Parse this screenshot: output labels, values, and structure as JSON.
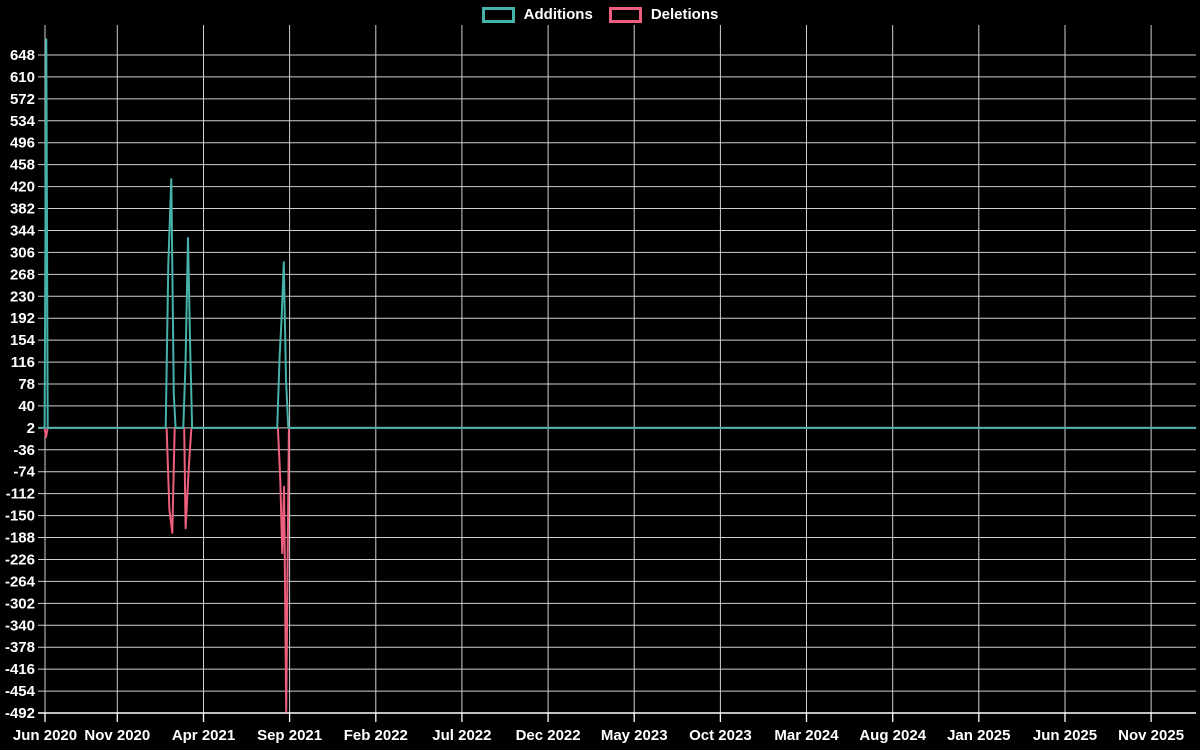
{
  "page": {
    "background": "#000000"
  },
  "legend": {
    "items": [
      {
        "label": "Additions",
        "color": "#45b3aa"
      },
      {
        "label": "Deletions",
        "color": "#ee5f7d"
      }
    ]
  },
  "chart_data": {
    "type": "line",
    "title": "",
    "xlabel": "",
    "ylabel": "",
    "legend_position": "top-center",
    "grid": true,
    "grid_color": "#cfcfcf",
    "axis_color": "#ffffff",
    "text_color": "#ffffff",
    "x_axis": {
      "x_unit": "months_after_first_tick",
      "tick_months": [
        0,
        5,
        10,
        15,
        20,
        25,
        30,
        35,
        40,
        45,
        50,
        55,
        60,
        65
      ],
      "tick_labels": [
        "Jun 2020",
        "Nov 2020",
        "Apr 2021",
        "Sep 2021",
        "Feb 2022",
        "Jul 2022",
        "Dec 2022",
        "May 2023",
        "Oct 2023",
        "Mar 2024",
        "Aug 2024",
        "Jan 2025",
        "Jun 2025",
        "Nov 2025"
      ]
    },
    "y_axis": {
      "tick_step": -38,
      "tick_values": [
        648,
        610,
        572,
        534,
        496,
        458,
        420,
        382,
        344,
        306,
        268,
        230,
        192,
        154,
        116,
        78,
        40,
        2,
        -36,
        -74,
        -112,
        -150,
        -188,
        -226,
        -264,
        -302,
        -340,
        -378,
        -416,
        -454,
        -492
      ],
      "ylim": [
        -492,
        676
      ],
      "baseline_value": 2
    },
    "series": [
      {
        "name": "Additions",
        "color": "#45b3aa",
        "points": [
          [
            -0.45,
            2
          ],
          [
            -0.08,
            2
          ],
          [
            0.02,
            675
          ],
          [
            0.1,
            2
          ],
          [
            6.95,
            2
          ],
          [
            7.1,
            285
          ],
          [
            7.27,
            433
          ],
          [
            7.42,
            60
          ],
          [
            7.52,
            2
          ],
          [
            7.97,
            2
          ],
          [
            8.1,
            120
          ],
          [
            8.24,
            331
          ],
          [
            8.37,
            140
          ],
          [
            8.48,
            2
          ],
          [
            13.42,
            2
          ],
          [
            13.56,
            125
          ],
          [
            13.68,
            195
          ],
          [
            13.8,
            289
          ],
          [
            13.93,
            85
          ],
          [
            14.06,
            2
          ],
          [
            66.75,
            2
          ]
        ]
      },
      {
        "name": "Deletions",
        "color": "#ee5f7d",
        "points": [
          [
            -0.45,
            2
          ],
          [
            -0.08,
            2
          ],
          [
            0.0,
            -14
          ],
          [
            0.1,
            2
          ],
          [
            7.0,
            2
          ],
          [
            7.16,
            -140
          ],
          [
            7.33,
            -180
          ],
          [
            7.47,
            2
          ],
          [
            8.02,
            2
          ],
          [
            8.1,
            -172
          ],
          [
            8.3,
            -60
          ],
          [
            8.44,
            2
          ],
          [
            13.46,
            2
          ],
          [
            13.6,
            -88
          ],
          [
            13.71,
            -215
          ],
          [
            13.82,
            -100
          ],
          [
            13.94,
            -490
          ],
          [
            14.1,
            2
          ],
          [
            66.75,
            2
          ]
        ]
      }
    ]
  }
}
